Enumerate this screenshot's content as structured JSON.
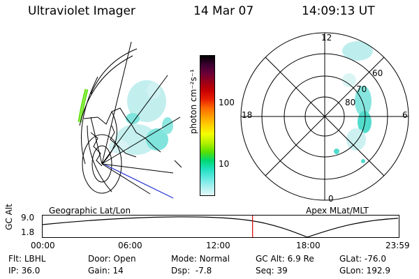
{
  "header": {
    "instrument": "Ultraviolet Imager",
    "date": "14 Mar 07",
    "time": "14:09:13 UT"
  },
  "colorbar": {
    "unit_label": "photon cm⁻²s⁻¹",
    "ticks": [
      "100",
      "10"
    ],
    "colors": [
      "#000000",
      "#3a0030",
      "#6a0038",
      "#9a0018",
      "#c80000",
      "#e82000",
      "#ff6a00",
      "#ffa000",
      "#ffd200",
      "#f2ff00",
      "#b4f000",
      "#5ae000",
      "#00d870",
      "#20e0c0",
      "#60e8e0",
      "#a8f0f0",
      "#e4f8f8"
    ]
  },
  "left_panel": {
    "caption": "Geographic Lat/Lon"
  },
  "right_panel": {
    "caption": "Apex MLat/MLT",
    "mlt_labels": {
      "top": "12",
      "left": "18",
      "right": "6",
      "bottom": "0"
    },
    "lat_labels": [
      "60",
      "70",
      "80"
    ]
  },
  "timeline": {
    "ylabel": "GC Alt",
    "y_ticks": [
      "9.0",
      "1.8"
    ],
    "x_ticks": [
      "00:00",
      "06:00",
      "12:00",
      "18:00",
      "23:59"
    ],
    "marker_color": "#dd0000",
    "marker_hour": 14.15
  },
  "info": {
    "row1": [
      {
        "label": "Flt:",
        "value": "LBHL"
      },
      {
        "label": "Door:",
        "value": "Open"
      },
      {
        "label": "Mode:",
        "value": "Normal"
      },
      {
        "label": "GC Alt:",
        "value": "6.9 Re"
      },
      {
        "label": "GLat:",
        "value": "-76.0"
      }
    ],
    "row2": [
      {
        "label": "IP:",
        "value": "36.0"
      },
      {
        "label": "Gain:",
        "value": "14"
      },
      {
        "label": "Dsp:",
        "value": "-7.8"
      },
      {
        "label": "Seq:",
        "value": "39"
      },
      {
        "label": "GLon:",
        "value": "192.9"
      }
    ]
  }
}
